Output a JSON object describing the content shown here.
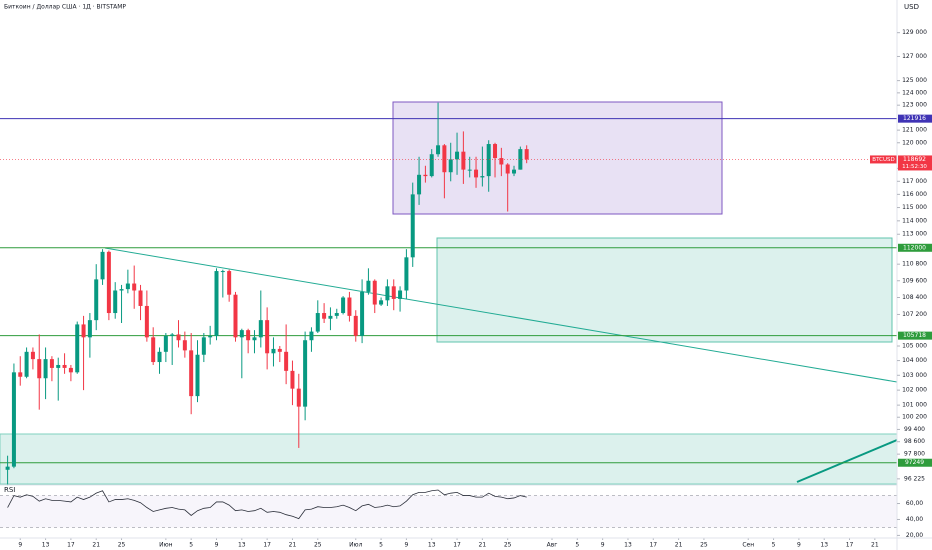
{
  "header": {
    "title": "Биткоин / Доллар США · 1Д · BITSTAMP",
    "currency": "USD"
  },
  "chart_data": [
    {
      "type": "candlestick",
      "log_scale": true,
      "up_color": "#089981",
      "down_color": "#f23645",
      "x": [
        7,
        8,
        9,
        10,
        11,
        12,
        13,
        14,
        15,
        16,
        17,
        18,
        19,
        20,
        21,
        22,
        23,
        24,
        25,
        26,
        27,
        28,
        29,
        30,
        31,
        32,
        33,
        34,
        35,
        36,
        37,
        38,
        39,
        40,
        41,
        42,
        43,
        44,
        45,
        46,
        47,
        48,
        49,
        50,
        51,
        52,
        53,
        54,
        55,
        56,
        57,
        58,
        59,
        60,
        61,
        62,
        63,
        64,
        65,
        66,
        67,
        68,
        69,
        70,
        71,
        72,
        73,
        74,
        75,
        76,
        77,
        78,
        79,
        80,
        81,
        82,
        83,
        84,
        85,
        86,
        87,
        88,
        89
      ],
      "open": [
        96800,
        97000,
        103200,
        102900,
        104600,
        104100,
        102800,
        104100,
        103500,
        103700,
        103500,
        103200,
        106500,
        105600,
        106800,
        109700,
        111700,
        107300,
        108900,
        109000,
        109400,
        108900,
        107800,
        105600,
        103900,
        104600,
        105700,
        105800,
        105400,
        104700,
        101600,
        104400,
        105600,
        105700,
        110300,
        110300,
        108600,
        105600,
        106100,
        105400,
        105600,
        106800,
        104500,
        104800,
        104600,
        103300,
        102100,
        100900,
        105400,
        106000,
        107300,
        106900,
        107100,
        107300,
        108400,
        107100,
        105700,
        108800,
        109600,
        107900,
        108200,
        109200,
        108300,
        108900,
        111300,
        116000,
        117500,
        117400,
        119100,
        119800,
        117700,
        118700,
        119300,
        117900,
        117900,
        117300,
        117400,
        119900,
        118800,
        118300,
        117600,
        117900,
        119500
      ],
      "high": [
        97700,
        103800,
        104300,
        104900,
        104900,
        105800,
        104900,
        104300,
        104200,
        104500,
        103700,
        106700,
        107100,
        107300,
        110800,
        111900,
        111800,
        109500,
        109300,
        110400,
        110700,
        109300,
        108900,
        106300,
        104900,
        105900,
        105900,
        106800,
        106000,
        105900,
        105400,
        105900,
        106400,
        110500,
        110400,
        110400,
        108800,
        106200,
        106200,
        106100,
        108900,
        107700,
        105600,
        105000,
        106500,
        104000,
        103100,
        106000,
        106300,
        108200,
        108000,
        107700,
        107600,
        108500,
        108800,
        107500,
        109700,
        110500,
        109700,
        108400,
        109700,
        109700,
        109200,
        111900,
        116900,
        118900,
        118200,
        119500,
        123200,
        119900,
        120000,
        120800,
        120900,
        118900,
        118900,
        119700,
        120200,
        120000,
        119600,
        118400,
        118200,
        119700,
        119800
      ],
      "low": [
        95800,
        96900,
        102300,
        102800,
        103400,
        100700,
        101400,
        102600,
        101300,
        103100,
        102600,
        103100,
        102000,
        104200,
        106100,
        109300,
        106800,
        106900,
        106600,
        108700,
        107600,
        106800,
        105300,
        103700,
        103100,
        103900,
        103700,
        104900,
        104200,
        100400,
        101200,
        103900,
        105100,
        105400,
        108400,
        108100,
        105300,
        102800,
        104500,
        104500,
        104900,
        103400,
        103600,
        103900,
        102400,
        101000,
        98200,
        100000,
        104600,
        105900,
        106600,
        106100,
        106900,
        107200,
        106700,
        105300,
        105200,
        108600,
        107300,
        107800,
        107800,
        107500,
        107400,
        108300,
        110600,
        115200,
        116900,
        117300,
        118900,
        115700,
        117000,
        117500,
        116800,
        117300,
        116500,
        116600,
        116200,
        117300,
        117400,
        114700,
        117400,
        117900,
        118400
      ],
      "close": [
        97000,
        103200,
        102900,
        104600,
        104100,
        102800,
        104100,
        103500,
        103700,
        103500,
        103200,
        106500,
        105600,
        106800,
        109700,
        111700,
        107300,
        108900,
        109000,
        109400,
        108900,
        107800,
        105600,
        103900,
        104600,
        105700,
        105800,
        105400,
        104700,
        101600,
        104400,
        105600,
        105700,
        110300,
        110300,
        108600,
        105600,
        106100,
        105400,
        105600,
        106800,
        104500,
        104800,
        104600,
        103300,
        102100,
        100900,
        105400,
        106000,
        107300,
        106900,
        107100,
        107300,
        108400,
        107100,
        105700,
        108800,
        109600,
        107900,
        108200,
        109200,
        108300,
        108900,
        111300,
        116000,
        117500,
        117400,
        119100,
        119800,
        117700,
        118700,
        119300,
        117900,
        117900,
        117300,
        117400,
        119900,
        118800,
        118300,
        117600,
        117900,
        119500,
        118692
      ],
      "xlim": [
        5.8,
        147.5
      ],
      "xticks": [
        {
          "value": 9,
          "label": "9"
        },
        {
          "value": 13,
          "label": "13"
        },
        {
          "value": 17,
          "label": "17"
        },
        {
          "value": 21,
          "label": "21"
        },
        {
          "value": 25,
          "label": "25"
        },
        {
          "value": 32,
          "label": "Июн"
        },
        {
          "value": 36,
          "label": "5"
        },
        {
          "value": 40,
          "label": "9"
        },
        {
          "value": 44,
          "label": "13"
        },
        {
          "value": 48,
          "label": "17"
        },
        {
          "value": 52,
          "label": "21"
        },
        {
          "value": 56,
          "label": "25"
        },
        {
          "value": 62,
          "label": "Июл"
        },
        {
          "value": 66,
          "label": "5"
        },
        {
          "value": 70,
          "label": "9"
        },
        {
          "value": 74,
          "label": "13"
        },
        {
          "value": 78,
          "label": "17"
        },
        {
          "value": 82,
          "label": "21"
        },
        {
          "value": 86,
          "label": "25"
        },
        {
          "value": 93,
          "label": "Авг"
        },
        {
          "value": 97,
          "label": "5"
        },
        {
          "value": 101,
          "label": "9"
        },
        {
          "value": 105,
          "label": "13"
        },
        {
          "value": 109,
          "label": "17"
        },
        {
          "value": 113,
          "label": "21"
        },
        {
          "value": 117,
          "label": "25"
        },
        {
          "value": 124,
          "label": "Сен"
        },
        {
          "value": 128,
          "label": "5"
        },
        {
          "value": 132,
          "label": "9"
        },
        {
          "value": 136,
          "label": "13"
        },
        {
          "value": 140,
          "label": "17"
        },
        {
          "value": 144,
          "label": "21"
        },
        {
          "value": 148,
          "label": "25"
        }
      ],
      "ylim": [
        95900,
        131800
      ],
      "yticks": [
        {
          "value": 129000,
          "label": "129 000"
        },
        {
          "value": 127000,
          "label": "127 000"
        },
        {
          "value": 125000,
          "label": "125 000"
        },
        {
          "value": 124000,
          "label": "124 000"
        },
        {
          "value": 123000,
          "label": "123 000"
        },
        {
          "value": 121000,
          "label": "121 000"
        },
        {
          "value": 120000,
          "label": "120 000"
        },
        {
          "value": 118000,
          "label": "118 000"
        },
        {
          "value": 117000,
          "label": "117 000"
        },
        {
          "value": 116000,
          "label": "116 000"
        },
        {
          "value": 115000,
          "label": "115 000"
        },
        {
          "value": 114000,
          "label": "114 000"
        },
        {
          "value": 113000,
          "label": "113 000"
        },
        {
          "value": 110800,
          "label": "110 800"
        },
        {
          "value": 109600,
          "label": "109 600"
        },
        {
          "value": 108400,
          "label": "108 400"
        },
        {
          "value": 107200,
          "label": "107 200"
        },
        {
          "value": 105000,
          "label": "105 000"
        },
        {
          "value": 104000,
          "label": "104 000"
        },
        {
          "value": 103000,
          "label": "103 000"
        },
        {
          "value": 102000,
          "label": "102 000"
        },
        {
          "value": 101000,
          "label": "101 000"
        },
        {
          "value": 100200,
          "label": "100 200"
        },
        {
          "value": 99400,
          "label": "99 400"
        },
        {
          "value": 98600,
          "label": "98 600"
        },
        {
          "value": 97800,
          "label": "97 800"
        },
        {
          "value": 96225,
          "label": "96 225"
        }
      ],
      "levels": [
        {
          "value": 121916,
          "label": "121916",
          "color": "#3f33b5"
        },
        {
          "value": 112000,
          "label": "112000",
          "color": "#2e9c3c"
        },
        {
          "value": 105718,
          "label": "105718",
          "color": "#2e9c3c"
        },
        {
          "value": 97249,
          "label": "97249",
          "color": "#2e9c3c"
        }
      ],
      "last_price": {
        "symbol": "BTCUSD",
        "value": 118692,
        "label": "118692",
        "countdown": "11:52:30",
        "color": "#f23645"
      }
    },
    {
      "type": "line",
      "title": "RSI",
      "color": "#2a2e39",
      "x": [
        7,
        8,
        9,
        10,
        11,
        12,
        13,
        14,
        15,
        16,
        17,
        18,
        19,
        20,
        21,
        22,
        23,
        24,
        25,
        26,
        27,
        28,
        29,
        30,
        31,
        32,
        33,
        34,
        35,
        36,
        37,
        38,
        39,
        40,
        41,
        42,
        43,
        44,
        45,
        46,
        47,
        48,
        49,
        50,
        51,
        52,
        53,
        54,
        55,
        56,
        57,
        58,
        59,
        60,
        61,
        62,
        63,
        64,
        65,
        66,
        67,
        68,
        69,
        70,
        71,
        72,
        73,
        74,
        75,
        76,
        77,
        78,
        79,
        80,
        81,
        82,
        83,
        84,
        85,
        86,
        87,
        88,
        89
      ],
      "values": [
        55,
        70,
        68,
        71,
        69,
        63,
        66,
        64,
        64,
        63,
        62,
        68,
        65,
        68,
        73,
        76,
        62,
        65,
        65,
        66,
        64,
        61,
        55,
        50,
        52,
        54,
        55,
        53,
        52,
        45,
        51,
        54,
        55,
        62,
        62,
        58,
        51,
        52,
        50,
        51,
        54,
        49,
        50,
        49,
        46,
        44,
        41,
        52,
        53,
        56,
        55,
        55,
        56,
        58,
        55,
        51,
        57,
        59,
        55,
        56,
        58,
        56,
        57,
        63,
        71,
        74,
        74,
        76,
        77,
        71,
        73,
        74,
        70,
        70,
        68,
        68,
        73,
        69,
        68,
        66,
        67,
        70,
        68
      ],
      "band": [
        30,
        70
      ],
      "ylim": [
        18,
        82
      ],
      "yticks": [
        {
          "value": 60,
          "label": "60,00"
        },
        {
          "value": 40,
          "label": "40,00"
        },
        {
          "value": 20,
          "label": "20,00"
        }
      ]
    }
  ]
}
